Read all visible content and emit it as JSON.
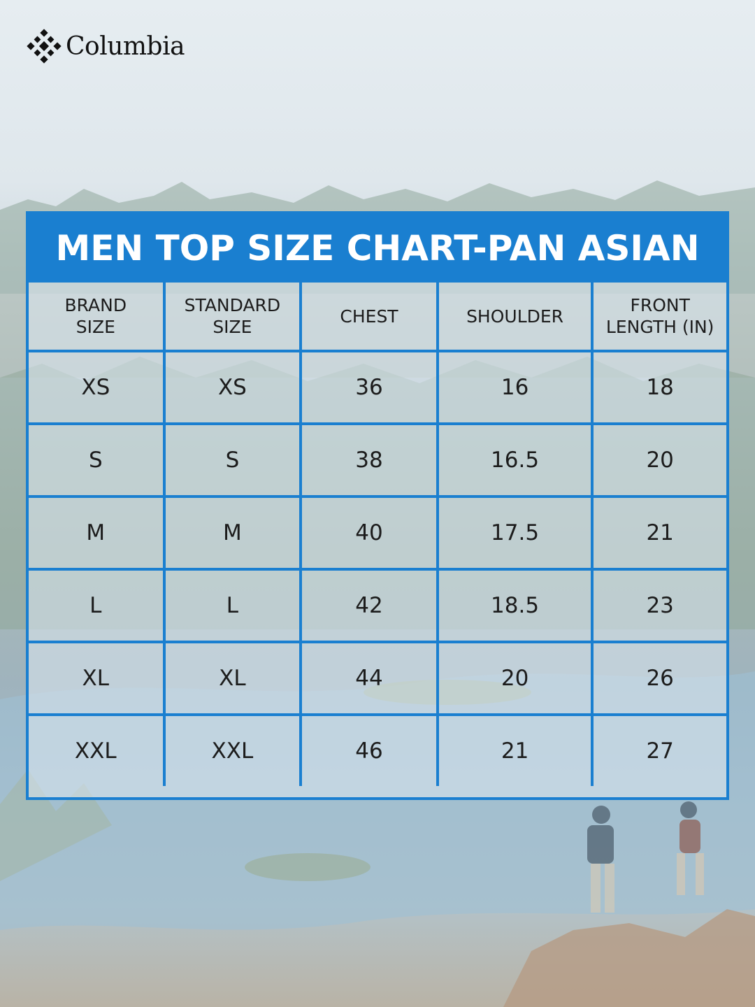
{
  "brand": {
    "logo_text": "Columbia",
    "logo_icon": "columbia-diamond-icon"
  },
  "chart": {
    "title": "MEN TOP SIZE CHART-PAN ASIAN",
    "accent_color": "#1a7fd0",
    "headers": [
      [
        "BRAND",
        "SIZE"
      ],
      [
        "STANDARD",
        "SIZE"
      ],
      [
        "CHEST"
      ],
      [
        "SHOULDER"
      ],
      [
        "FRONT",
        "LENGTH (IN)"
      ]
    ],
    "rows": [
      [
        "XS",
        "XS",
        "36",
        "16",
        "18"
      ],
      [
        "S",
        "S",
        "38",
        "16.5",
        "20"
      ],
      [
        "M",
        "M",
        "40",
        "17.5",
        "21"
      ],
      [
        "L",
        "L",
        "42",
        "18.5",
        "23"
      ],
      [
        "XL",
        "XL",
        "44",
        "20",
        "26"
      ],
      [
        "XXL",
        "XXL",
        "46",
        "21",
        "27"
      ]
    ]
  }
}
